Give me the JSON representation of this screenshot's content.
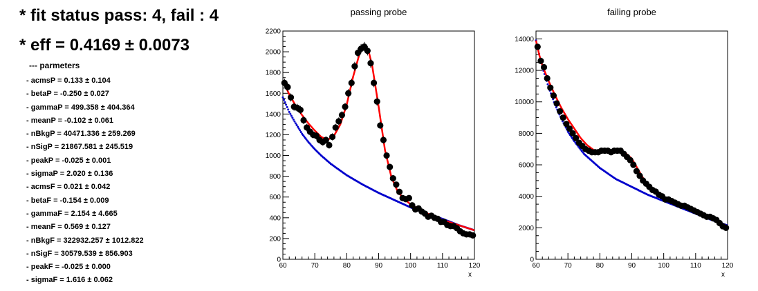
{
  "header": {
    "fit_status": "* fit status pass: 4, fail : 4",
    "efficiency": "* eff = 0.4169  ± 0.0073"
  },
  "parameters": {
    "heading": "--- parmeters",
    "items": [
      "- acmsP = 0.133 ± 0.104",
      "- betaP = -0.250 ± 0.027",
      "- gammaP = 499.358 ± 404.364",
      "- meanP = -0.102 ± 0.061",
      "- nBkgP = 40471.336 ± 259.269",
      "- nSigP = 21867.581 ± 245.519",
      "- peakP = -0.025 ± 0.001",
      "- sigmaP = 2.020 ± 0.136",
      "- acmsF = 0.021 ± 0.042",
      "- betaF = -0.154 ± 0.009",
      "- gammaF = 2.154 ± 4.665",
      "- meanF = 0.569 ± 0.127",
      "- nBkgF = 322932.257 ± 1012.822",
      "- nSigF = 30579.539 ± 856.903",
      "- peakF = -0.025 ± 0.000",
      "- sigmaF = 1.616 ± 0.062"
    ]
  },
  "colors": {
    "data": "#000000",
    "fit": "#ff0000",
    "background": "#0000cc"
  },
  "chart_data": [
    {
      "type": "scatter",
      "title": "passing probe",
      "xlabel": "x",
      "ylabel": "",
      "xlim": [
        60,
        120
      ],
      "ylim": [
        0,
        2200
      ],
      "xticks": [
        60,
        70,
        80,
        90,
        100,
        110,
        120
      ],
      "xtick_labels": [
        "60",
        "70",
        "80",
        "90",
        "100",
        "110",
        "120"
      ],
      "yticks": [
        0,
        200,
        400,
        600,
        800,
        1000,
        1200,
        1400,
        1600,
        1800,
        2000,
        2200
      ],
      "ytick_labels": [
        "0",
        "200",
        "400",
        "600",
        "800",
        "1000",
        "1200",
        "1400",
        "1600",
        "1800",
        "2000",
        "2200"
      ],
      "data": {
        "x": [
          60.5,
          61.5,
          62.5,
          63.5,
          64.5,
          65.5,
          66.5,
          67.5,
          68.5,
          69.5,
          70.5,
          71.5,
          72.5,
          73.5,
          74.5,
          75.5,
          76.5,
          77.5,
          78.5,
          79.5,
          80.5,
          81.5,
          82.5,
          83.5,
          84.5,
          85.5,
          86.5,
          87.5,
          88.5,
          89.5,
          90.5,
          91.5,
          92.5,
          93.5,
          94.5,
          95.5,
          96.5,
          97.5,
          98.5,
          99.5,
          100.5,
          101.5,
          102.5,
          103.5,
          104.5,
          105.5,
          106.5,
          107.5,
          108.5,
          109.5,
          110.5,
          111.5,
          112.5,
          113.5,
          114.5,
          115.5,
          116.5,
          117.5,
          118.5,
          119.5
        ],
        "y": [
          1700,
          1660,
          1560,
          1470,
          1460,
          1440,
          1340,
          1270,
          1230,
          1200,
          1190,
          1150,
          1130,
          1150,
          1100,
          1180,
          1270,
          1330,
          1390,
          1470,
          1600,
          1700,
          1860,
          1990,
          2030,
          2050,
          2010,
          1890,
          1700,
          1520,
          1290,
          1150,
          1000,
          890,
          780,
          720,
          650,
          590,
          580,
          590,
          520,
          480,
          490,
          460,
          440,
          410,
          420,
          400,
          390,
          360,
          360,
          330,
          320,
          320,
          300,
          270,
          250,
          240,
          240,
          230
        ],
        "err": [
          40,
          40,
          39,
          38,
          38,
          38,
          37,
          36,
          35,
          35,
          35,
          34,
          34,
          34,
          33,
          34,
          36,
          37,
          37,
          38,
          40,
          41,
          43,
          45,
          45,
          45,
          45,
          43,
          41,
          39,
          36,
          34,
          32,
          30,
          28,
          27,
          26,
          24,
          24,
          24,
          23,
          22,
          22,
          21,
          21,
          20,
          20,
          20,
          20,
          19,
          19,
          18,
          18,
          18,
          17,
          16,
          16,
          15,
          15,
          15
        ]
      },
      "fit": {
        "x": [
          60,
          62,
          64,
          66,
          68,
          70,
          72,
          74,
          76,
          78,
          80,
          82,
          84,
          85,
          86,
          87,
          88,
          90,
          92,
          94,
          96,
          98,
          100,
          104,
          108,
          112,
          116,
          120
        ],
        "y": [
          1720,
          1590,
          1480,
          1390,
          1310,
          1240,
          1180,
          1150,
          1190,
          1300,
          1490,
          1760,
          1980,
          2040,
          2050,
          1990,
          1860,
          1470,
          1050,
          790,
          650,
          580,
          530,
          460,
          400,
          360,
          320,
          280
        ]
      },
      "background": {
        "x": [
          60,
          62,
          64,
          66,
          68,
          70,
          72,
          75,
          80,
          85,
          90,
          95,
          100,
          105,
          110,
          115,
          120
        ],
        "y": [
          1560,
          1420,
          1310,
          1210,
          1130,
          1060,
          1000,
          920,
          810,
          720,
          640,
          570,
          500,
          440,
          390,
          330,
          280
        ]
      }
    },
    {
      "type": "scatter",
      "title": "failing probe",
      "xlabel": "x",
      "ylabel": "",
      "xlim": [
        60,
        120
      ],
      "ylim": [
        0,
        14500
      ],
      "xticks": [
        60,
        70,
        80,
        90,
        100,
        110,
        120
      ],
      "xtick_labels": [
        "60",
        "70",
        "80",
        "90",
        "100",
        "110",
        "120"
      ],
      "yticks": [
        0,
        2000,
        4000,
        6000,
        8000,
        10000,
        12000,
        14000
      ],
      "ytick_labels": [
        "0",
        "2000",
        "4000",
        "6000",
        "8000",
        "10000",
        "12000",
        "14000"
      ],
      "data": {
        "x": [
          60.5,
          61.5,
          62.5,
          63.5,
          64.5,
          65.5,
          66.5,
          67.5,
          68.5,
          69.5,
          70.5,
          71.5,
          72.5,
          73.5,
          74.5,
          75.5,
          76.5,
          77.5,
          78.5,
          79.5,
          80.5,
          81.5,
          82.5,
          83.5,
          84.5,
          85.5,
          86.5,
          87.5,
          88.5,
          89.5,
          90.5,
          91.5,
          92.5,
          93.5,
          94.5,
          95.5,
          96.5,
          97.5,
          98.5,
          99.5,
          100.5,
          101.5,
          102.5,
          103.5,
          104.5,
          105.5,
          106.5,
          107.5,
          108.5,
          109.5,
          110.5,
          111.5,
          112.5,
          113.5,
          114.5,
          115.5,
          116.5,
          117.5,
          118.5,
          119.5
        ],
        "y": [
          13500,
          12600,
          12200,
          11500,
          10900,
          10400,
          9900,
          9400,
          9000,
          8600,
          8300,
          8000,
          7700,
          7400,
          7200,
          7000,
          6900,
          6800,
          6800,
          6800,
          6900,
          6900,
          6900,
          6800,
          6900,
          6900,
          6900,
          6700,
          6500,
          6300,
          6000,
          5600,
          5300,
          5000,
          4800,
          4600,
          4400,
          4300,
          4100,
          4000,
          3800,
          3800,
          3700,
          3600,
          3500,
          3400,
          3400,
          3300,
          3200,
          3100,
          3000,
          2900,
          2800,
          2700,
          2700,
          2600,
          2500,
          2300,
          2100,
          2000
        ]
      },
      "fit": {
        "x": [
          60,
          61,
          62,
          64,
          66,
          68,
          70,
          72,
          74,
          76,
          78,
          80,
          82,
          84,
          86,
          88,
          90,
          92,
          94,
          96,
          98,
          100,
          104,
          108,
          112,
          116,
          120
        ],
        "y": [
          13900,
          13000,
          12300,
          11300,
          10400,
          9600,
          8900,
          8300,
          7700,
          7250,
          6950,
          6800,
          6800,
          6850,
          6850,
          6750,
          6400,
          5700,
          5000,
          4600,
          4250,
          3950,
          3500,
          3150,
          2800,
          2450,
          2100
        ]
      },
      "background": {
        "x": [
          60,
          62,
          64,
          66,
          68,
          70,
          72,
          75,
          80,
          85,
          90,
          95,
          100,
          105,
          110,
          115,
          120
        ],
        "y": [
          13900,
          12200,
          10900,
          9800,
          8900,
          8100,
          7500,
          6700,
          5800,
          5100,
          4600,
          4100,
          3700,
          3300,
          2900,
          2500,
          2150
        ]
      }
    }
  ]
}
